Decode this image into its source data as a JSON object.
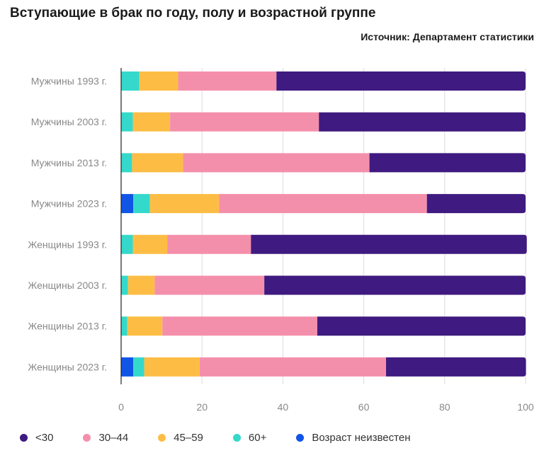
{
  "header": {
    "title": "Вступающие в брак по году, полу и возрастной группе",
    "source": "Источник: Департамент статистики"
  },
  "chart_data": {
    "type": "bar",
    "orientation": "horizontal",
    "stacked": true,
    "categories": [
      "Мужчины 1993 г.",
      "Мужчины 2003 г.",
      "Мужчины 2013 г.",
      "Мужчины 2023 г.",
      "Женщины 1993 г.",
      "Женщины 2003 г.",
      "Женщины 2013 г.",
      "Женщины 2023 г."
    ],
    "stack_order": [
      "Возраст неизвестен",
      "60+",
      "45–59",
      "30–44",
      "<30"
    ],
    "series": [
      {
        "name": "<30",
        "color": "#3f1a80",
        "values": [
          61.6,
          51.1,
          38.6,
          24.4,
          68.2,
          64.6,
          51.5,
          34.6
        ]
      },
      {
        "name": "30–44",
        "color": "#f48fab",
        "values": [
          24.3,
          36.8,
          46.1,
          51.4,
          20.7,
          27.1,
          38.3,
          46.1
        ]
      },
      {
        "name": "45–59",
        "color": "#fdbd45",
        "values": [
          9.6,
          9.2,
          12.6,
          17.1,
          8.5,
          6.6,
          8.7,
          13.7
        ]
      },
      {
        "name": "60+",
        "color": "#34d9cb",
        "values": [
          4.5,
          2.9,
          2.7,
          4.1,
          2.9,
          1.7,
          1.5,
          2.7
        ]
      },
      {
        "name": "Возраст неизвестен",
        "color": "#1155e6",
        "values": [
          0,
          0,
          0,
          3.0,
          0,
          0,
          0,
          3.0
        ]
      }
    ],
    "xlim": [
      0,
      100
    ],
    "xticks": [
      "0",
      "20",
      "40",
      "60",
      "80",
      "100"
    ],
    "grid": true,
    "legend_position": "bottom",
    "legend": [
      "<30",
      "30–44",
      "45–59",
      "60+",
      "Возраст неизвестен"
    ]
  }
}
